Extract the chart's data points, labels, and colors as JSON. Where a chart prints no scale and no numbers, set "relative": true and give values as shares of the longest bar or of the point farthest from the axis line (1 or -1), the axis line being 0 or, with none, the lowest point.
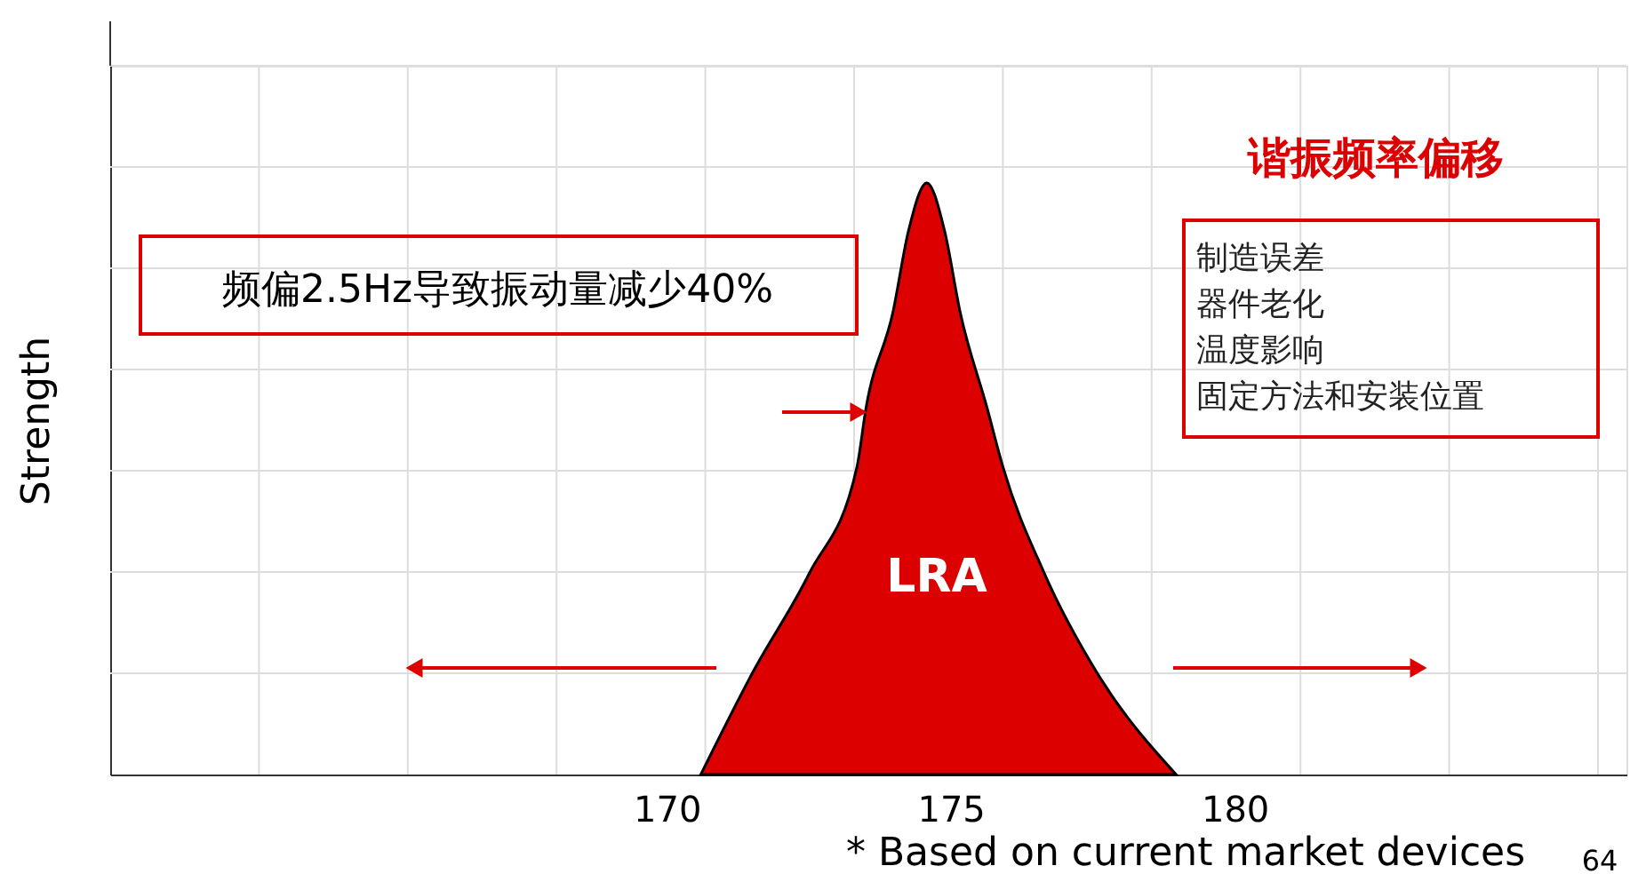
{
  "chart_data": {
    "type": "area",
    "relative": true,
    "ylabel": "Strength",
    "xlim": [
      160.2,
      186.9
    ],
    "xticks": [
      170,
      175,
      180
    ],
    "grid": true,
    "x": [
      170.6,
      171.5,
      172.51,
      173.35,
      173.51,
      173.98,
      174.26,
      174.58,
      174.89,
      175.17,
      175.64,
      175.92,
      176.65,
      177.59,
      178.97
    ],
    "series": [
      {
        "color": "#dd0000",
        "values": [
          0,
          0.17,
          0.34,
          0.52,
          0.62,
          0.78,
          0.92,
          1,
          0.92,
          0.78,
          0.62,
          0.52,
          0.34,
          0.17,
          0
        ]
      }
    ],
    "annotations": [
      "频偏2.5Hz导致振动量减少40%",
      "谐振频率偏移",
      "制造误差",
      "器件老化",
      "温度影响",
      "固定方法和安装位置",
      "LRA",
      "* Based on current market devices",
      "64"
    ]
  }
}
